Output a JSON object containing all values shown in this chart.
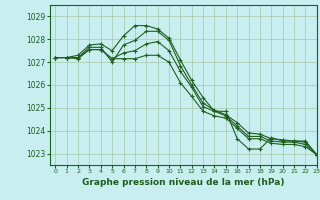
{
  "background_color": "#c8eef0",
  "grid_color": "#a8c8a8",
  "line_color": "#1e5e1e",
  "xlabel": "Graphe pression niveau de la mer (hPa)",
  "xlim": [
    -0.5,
    23
  ],
  "ylim": [
    1022.5,
    1029.5
  ],
  "yticks": [
    1023,
    1024,
    1025,
    1026,
    1027,
    1028,
    1029
  ],
  "xticks": [
    0,
    1,
    2,
    3,
    4,
    5,
    6,
    7,
    8,
    9,
    10,
    11,
    12,
    13,
    14,
    15,
    16,
    17,
    18,
    19,
    20,
    21,
    22,
    23
  ],
  "series": [
    [
      1027.2,
      1027.2,
      1027.3,
      1027.75,
      1027.8,
      1027.5,
      1028.15,
      1028.6,
      1028.6,
      1028.45,
      1028.05,
      1027.1,
      1026.2,
      1025.45,
      1024.85,
      1024.85,
      1023.65,
      1023.2,
      1023.2,
      1023.7,
      1023.55,
      1023.55,
      1023.55,
      1022.95
    ],
    [
      1027.2,
      1027.2,
      1027.2,
      1027.65,
      1027.65,
      1027.0,
      1027.75,
      1027.95,
      1028.35,
      1028.35,
      1027.95,
      1026.85,
      1026.0,
      1025.2,
      1024.9,
      1024.7,
      1024.35,
      1023.9,
      1023.85,
      1023.65,
      1023.6,
      1023.55,
      1023.5,
      1022.95
    ],
    [
      1027.2,
      1027.2,
      1027.15,
      1027.55,
      1027.55,
      1027.15,
      1027.4,
      1027.5,
      1027.8,
      1027.9,
      1027.5,
      1026.6,
      1025.9,
      1025.05,
      1024.85,
      1024.65,
      1024.2,
      1023.75,
      1023.75,
      1023.55,
      1023.5,
      1023.5,
      1023.4,
      1022.95
    ],
    [
      1027.2,
      1027.2,
      1027.2,
      1027.55,
      1027.55,
      1027.15,
      1027.15,
      1027.15,
      1027.3,
      1027.3,
      1027.0,
      1026.1,
      1025.5,
      1024.85,
      1024.65,
      1024.55,
      1024.1,
      1023.65,
      1023.65,
      1023.45,
      1023.4,
      1023.4,
      1023.3,
      1022.95
    ]
  ]
}
